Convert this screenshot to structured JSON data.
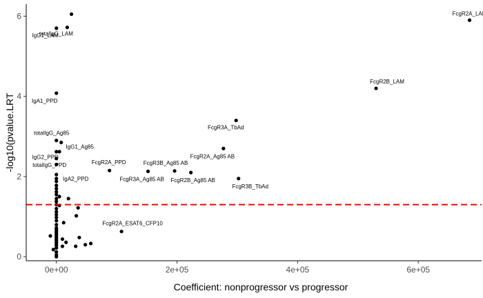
{
  "chart_data": {
    "type": "scatter",
    "xlabel": "Coefficient: nonprogressor vs progressor",
    "ylabel": "-log10(pvalue.LRT",
    "xlim": [
      -50000,
      705000
    ],
    "ylim": [
      -0.1,
      6.3
    ],
    "x_ticks": [
      0,
      200000,
      400000,
      600000
    ],
    "x_tick_labels": [
      "0e+00",
      "2e+05",
      "4e+05",
      "6e+05"
    ],
    "y_ticks": [
      0,
      2,
      4,
      6
    ],
    "y_tick_labels": [
      "0",
      "2",
      "4",
      "6"
    ],
    "grid": false,
    "threshold_line": {
      "y": 1.3,
      "color": "#ff0000",
      "style": "dashed"
    },
    "point_color": "#000000",
    "points": [
      {
        "x": 685000,
        "y": 5.9,
        "label": "FcgR2A_LAM"
      },
      {
        "x": 25000,
        "y": 6.05,
        "label": ""
      },
      {
        "x": 18000,
        "y": 5.72,
        "label": "totalIgG_LAM"
      },
      {
        "x": 0,
        "y": 5.7,
        "label": "IgG1_LAM"
      },
      {
        "x": 530000,
        "y": 4.2,
        "label": "FcgR2B_LAM"
      },
      {
        "x": 0,
        "y": 4.08,
        "label": "IgA1_PPD"
      },
      {
        "x": 298000,
        "y": 3.4,
        "label": "FcgR3A_TbAd"
      },
      {
        "x": 8000,
        "y": 2.85,
        "label": "IgG1_Ag85"
      },
      {
        "x": 0,
        "y": 2.9,
        "label": "totalIgG_Ag85"
      },
      {
        "x": 277000,
        "y": 2.7,
        "label": "FcgR2A_Ag85 AB"
      },
      {
        "x": 0,
        "y": 2.62,
        "label": ""
      },
      {
        "x": 5000,
        "y": 2.62,
        "label": ""
      },
      {
        "x": 0,
        "y": 2.45,
        "label": "totalIgG_PPD"
      },
      {
        "x": 0,
        "y": 2.3,
        "label": "IgG2_PPD"
      },
      {
        "x": 88000,
        "y": 2.15,
        "label": "FcgR2A_PPD"
      },
      {
        "x": 152000,
        "y": 2.13,
        "label": "FcgR3A_Ag85 AB"
      },
      {
        "x": 196000,
        "y": 2.14,
        "label": "FcgR3B_Ag85 AB"
      },
      {
        "x": 223000,
        "y": 2.1,
        "label": "FcgR2B_Ag85 AB"
      },
      {
        "x": 302000,
        "y": 1.95,
        "label": "FcgR3B_TbAd"
      },
      {
        "x": 0,
        "y": 2.05,
        "label": "IgA2_PPD"
      },
      {
        "x": 0,
        "y": 1.95,
        "label": ""
      },
      {
        "x": 0,
        "y": 1.88,
        "label": ""
      },
      {
        "x": 0,
        "y": 1.78,
        "label": ""
      },
      {
        "x": 0,
        "y": 1.7,
        "label": ""
      },
      {
        "x": 0,
        "y": 1.62,
        "label": ""
      },
      {
        "x": 0,
        "y": 1.55,
        "label": ""
      },
      {
        "x": 5000,
        "y": 1.5,
        "label": ""
      },
      {
        "x": 0,
        "y": 1.45,
        "label": ""
      },
      {
        "x": 20000,
        "y": 1.45,
        "label": ""
      },
      {
        "x": 0,
        "y": 1.38,
        "label": ""
      },
      {
        "x": 0,
        "y": 1.3,
        "label": ""
      },
      {
        "x": 5000,
        "y": 1.28,
        "label": ""
      },
      {
        "x": 36000,
        "y": 1.22,
        "label": ""
      },
      {
        "x": 0,
        "y": 1.2,
        "label": ""
      },
      {
        "x": 0,
        "y": 1.12,
        "label": ""
      },
      {
        "x": 0,
        "y": 1.05,
        "label": ""
      },
      {
        "x": 33000,
        "y": 1.02,
        "label": ""
      },
      {
        "x": 0,
        "y": 0.98,
        "label": ""
      },
      {
        "x": 0,
        "y": 0.9,
        "label": ""
      },
      {
        "x": 12000,
        "y": 0.85,
        "label": ""
      },
      {
        "x": 0,
        "y": 0.8,
        "label": ""
      },
      {
        "x": 0,
        "y": 0.72,
        "label": ""
      },
      {
        "x": 0,
        "y": 0.68,
        "label": ""
      },
      {
        "x": 0,
        "y": 0.64,
        "label": ""
      },
      {
        "x": 0,
        "y": 0.6,
        "label": ""
      },
      {
        "x": 0,
        "y": 0.56,
        "label": ""
      },
      {
        "x": 0,
        "y": 0.52,
        "label": ""
      },
      {
        "x": -10000,
        "y": 0.52,
        "label": ""
      },
      {
        "x": 0,
        "y": 0.48,
        "label": ""
      },
      {
        "x": 0,
        "y": 0.44,
        "label": ""
      },
      {
        "x": 10000,
        "y": 0.44,
        "label": ""
      },
      {
        "x": 0,
        "y": 0.4,
        "label": ""
      },
      {
        "x": 38000,
        "y": 0.48,
        "label": ""
      },
      {
        "x": 0,
        "y": 0.36,
        "label": ""
      },
      {
        "x": 16000,
        "y": 0.36,
        "label": ""
      },
      {
        "x": 0,
        "y": 0.32,
        "label": ""
      },
      {
        "x": 0,
        "y": 0.28,
        "label": ""
      },
      {
        "x": 10000,
        "y": 0.26,
        "label": ""
      },
      {
        "x": 32000,
        "y": 0.26,
        "label": ""
      },
      {
        "x": 48000,
        "y": 0.3,
        "label": ""
      },
      {
        "x": 57000,
        "y": 0.33,
        "label": ""
      },
      {
        "x": 0,
        "y": 0.22,
        "label": ""
      },
      {
        "x": -5000,
        "y": 0.18,
        "label": ""
      },
      {
        "x": 0,
        "y": 0.12,
        "label": ""
      },
      {
        "x": 0,
        "y": 0.05,
        "label": ""
      },
      {
        "x": 0,
        "y": 0.0,
        "label": ""
      },
      {
        "x": 108000,
        "y": 0.63,
        "label": "FcgR2A_ESAT6_CFP10"
      }
    ]
  }
}
